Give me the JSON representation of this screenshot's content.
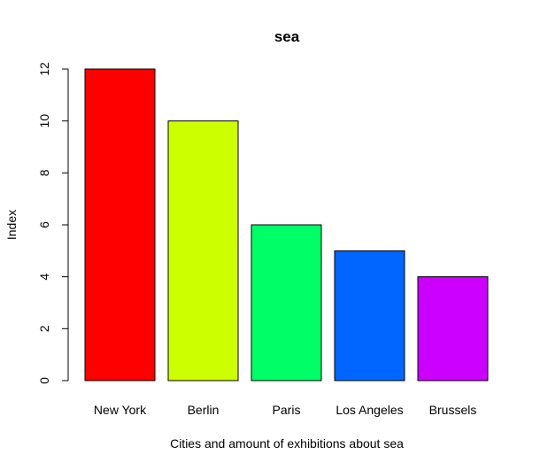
{
  "chart_data": {
    "type": "bar",
    "title": "sea",
    "xlabel": "Cities and amount of exhibitions about sea",
    "ylabel": "Index",
    "categories": [
      "New York",
      "Berlin",
      "Paris",
      "Los Angeles",
      "Brussels"
    ],
    "values": [
      12,
      10,
      6,
      5,
      4
    ],
    "colors": [
      "#ff0000",
      "#ccff00",
      "#00ff66",
      "#0066ff",
      "#cc00ff"
    ],
    "ylim": [
      0,
      12
    ],
    "yticks": [
      0,
      2,
      4,
      6,
      8,
      10,
      12
    ],
    "grid": false,
    "legend": "none"
  }
}
